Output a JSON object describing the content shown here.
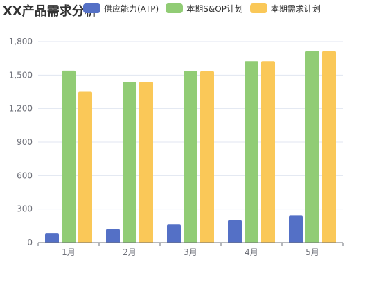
{
  "chart_data": {
    "type": "bar",
    "title": "XX产品需求分析",
    "categories": [
      "1月",
      "2月",
      "3月",
      "4月",
      "5月"
    ],
    "series": [
      {
        "name": "供应能力(ATP)",
        "color": "#5470c6",
        "values": [
          80,
          120,
          160,
          200,
          240
        ]
      },
      {
        "name": "本期S&OP计划",
        "color": "#91cc75",
        "values": [
          1540,
          1440,
          1535,
          1625,
          1715
        ]
      },
      {
        "name": "本期需求计划",
        "color": "#fac858",
        "values": [
          1350,
          1440,
          1535,
          1625,
          1715
        ]
      }
    ],
    "yticks": [
      "0",
      "300",
      "600",
      "900",
      "1,200",
      "1,500",
      "1,800"
    ],
    "ylim": [
      0,
      1800
    ],
    "xlabel": "",
    "ylabel": "",
    "grid": true,
    "legend_position": "top"
  }
}
